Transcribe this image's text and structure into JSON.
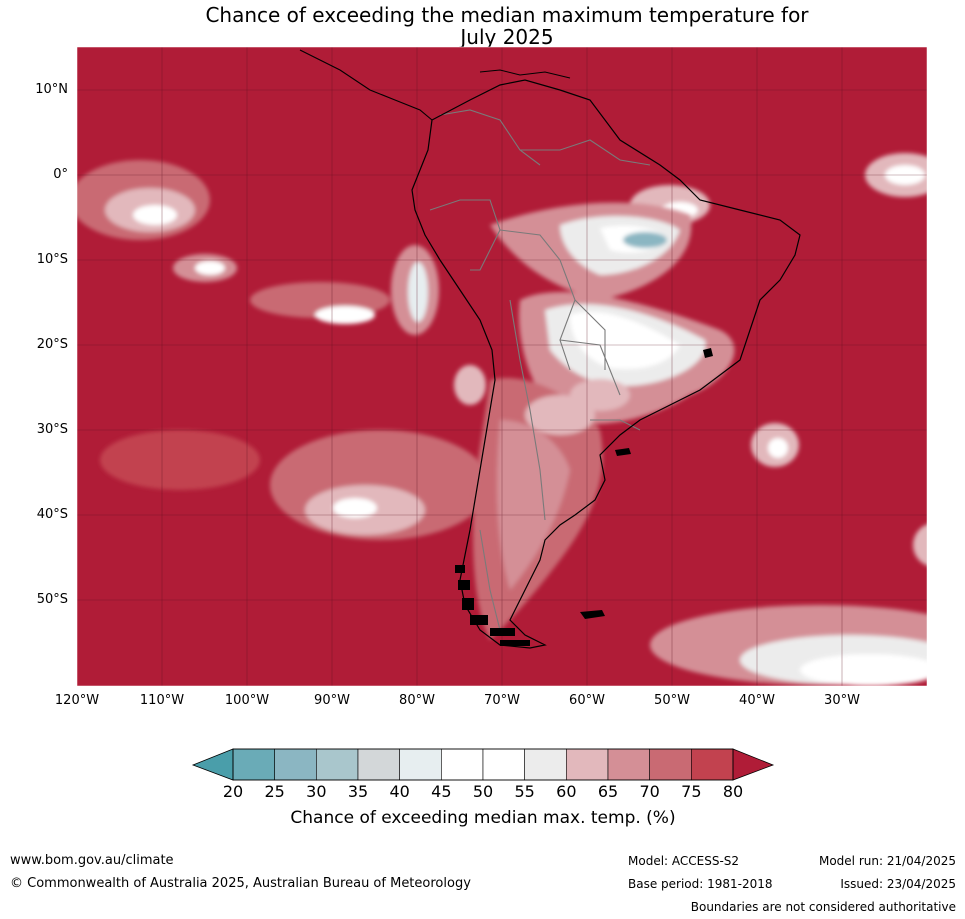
{
  "title": {
    "line1": "Chance of exceeding the median maximum temperature for",
    "line2": "July 2025"
  },
  "map": {
    "lat_labels": [
      "10°N",
      "0°",
      "10°S",
      "20°S",
      "30°S",
      "40°S",
      "50°S"
    ],
    "lon_labels": [
      "120°W",
      "110°W",
      "100°W",
      "90°W",
      "80°W",
      "70°W",
      "60°W",
      "50°W",
      "40°W",
      "30°W"
    ],
    "colors": {
      "above_80": "#b01c37",
      "75_80": "#c2424f",
      "70_75": "#c96a73",
      "65_70": "#d48f96",
      "60_65": "#e2b8bc",
      "55_60": "#ececec",
      "45_55": "#ffffff",
      "40_45": "#e7eef0",
      "35_40": "#d3d7d9",
      "30_35": "#a9c6cc",
      "25_30": "#8bb6c2",
      "20_25": "#6aabb7",
      "below_20": "#4a9eaa",
      "coastline": "#000000",
      "borders": "#7a7a7a",
      "gridlines": "#5a1020"
    }
  },
  "colorbar": {
    "ticks": [
      "20",
      "25",
      "30",
      "35",
      "40",
      "45",
      "50",
      "55",
      "60",
      "65",
      "70",
      "75",
      "80"
    ],
    "label": "Chance of exceeding median max. temp. (%)",
    "segment_colors": [
      "#6aabb7",
      "#8bb6c2",
      "#a9c6cc",
      "#d3d7d9",
      "#e7eef0",
      "#ffffff",
      "#ffffff",
      "#ececec",
      "#e2b8bc",
      "#d48f96",
      "#c96a73",
      "#c2424f"
    ],
    "low_color": "#4a9eaa",
    "high_color": "#b01c37"
  },
  "footer": {
    "website": "www.bom.gov.au/climate",
    "copyright": "© Commonwealth of Australia 2025, Australian Bureau of Meteorology",
    "model": "Model: ACCESS-S2",
    "base_period": "Base period: 1981-2018",
    "model_run": "Model run: 21/04/2025",
    "issued": "Issued: 23/04/2025",
    "disclaimer": "Boundaries are not considered authoritative"
  }
}
